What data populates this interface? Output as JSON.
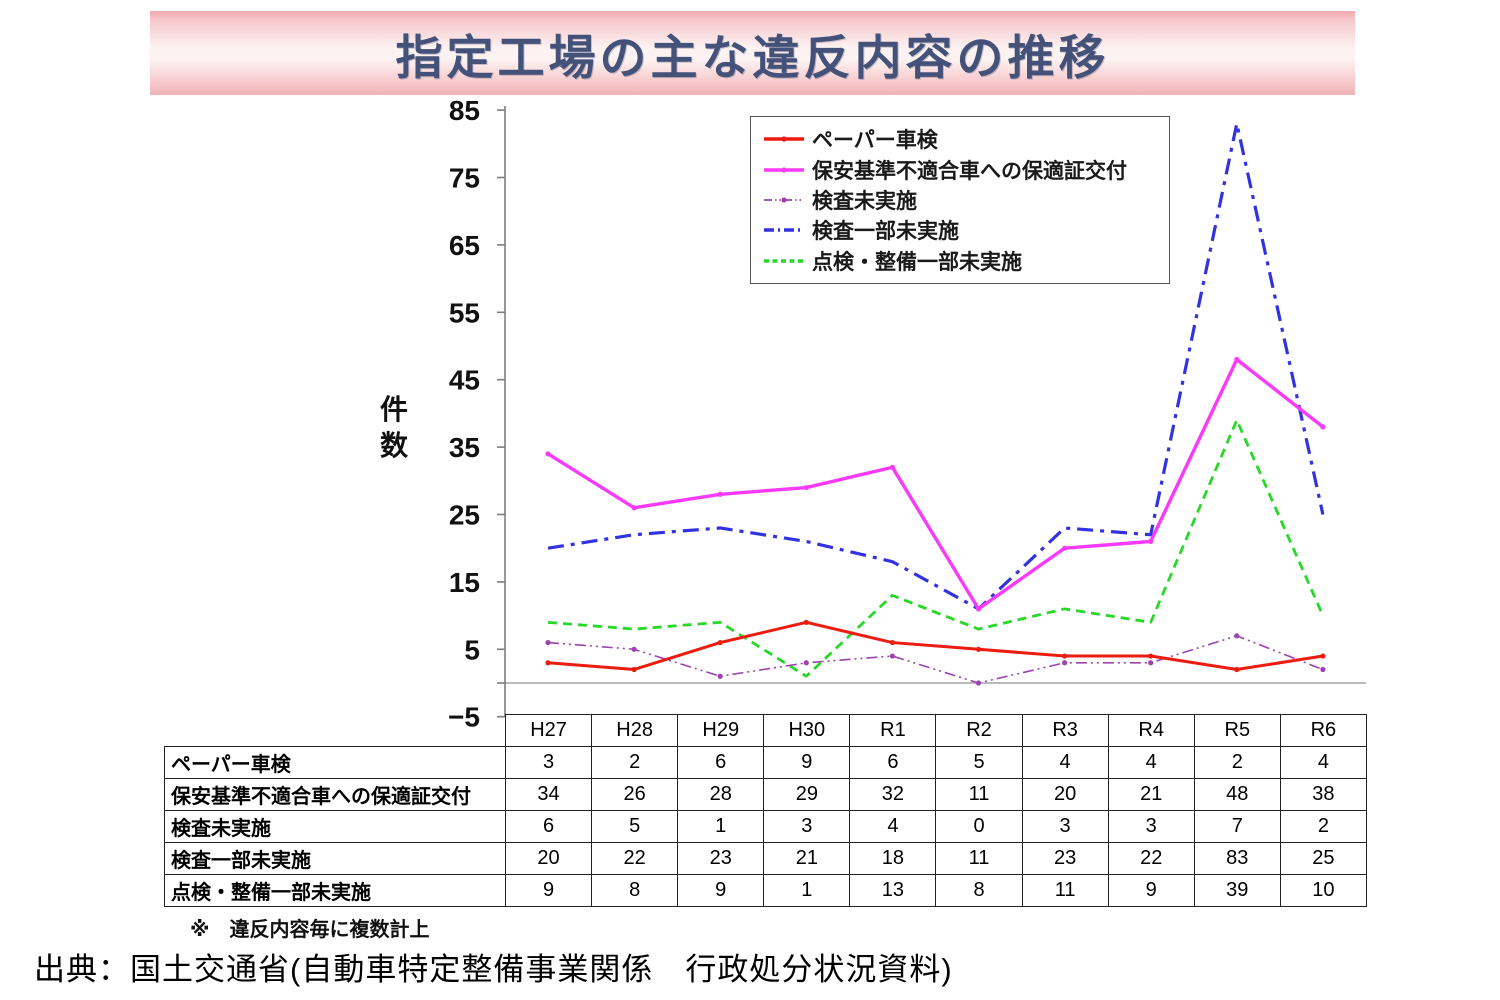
{
  "banner": {
    "title": "指定工場の主な違反内容の推移"
  },
  "chart_data": {
    "type": "line",
    "title": "指定工場の主な違反内容の推移",
    "xlabel": "",
    "ylabel": "件数",
    "ylim": [
      -5,
      85
    ],
    "yticks": [
      85,
      75,
      65,
      55,
      45,
      35,
      25,
      15,
      5,
      -5
    ],
    "grid": "zero-line-only",
    "legend_position": "top-right-inside",
    "categories": [
      "H27",
      "H28",
      "H29",
      "H30",
      "R1",
      "R2",
      "R3",
      "R4",
      "R5",
      "R6"
    ],
    "series": [
      {
        "name": "ペーパー車検",
        "color": "#ee1c10",
        "line_style": "solid",
        "marker": true,
        "values": [
          3,
          2,
          6,
          9,
          6,
          5,
          4,
          4,
          2,
          4
        ]
      },
      {
        "name": "保安基準不適合車への保適証交付",
        "color": "#fa3afa",
        "line_style": "solid",
        "marker": true,
        "values": [
          34,
          26,
          28,
          29,
          32,
          11,
          20,
          21,
          48,
          38
        ]
      },
      {
        "name": "検査未実施",
        "color": "#9b44ae",
        "line_style": "dash-dot-dot",
        "marker": true,
        "values": [
          6,
          5,
          1,
          3,
          4,
          0,
          3,
          3,
          7,
          2
        ]
      },
      {
        "name": "検査一部未実施",
        "color": "#3232e0",
        "line_style": "dash-dot",
        "marker": false,
        "values": [
          20,
          22,
          23,
          21,
          18,
          11,
          23,
          22,
          83,
          25
        ]
      },
      {
        "name": "点検・整備一部未実施",
        "color": "#28d828",
        "line_style": "dashed",
        "marker": false,
        "values": [
          9,
          8,
          9,
          1,
          13,
          8,
          11,
          9,
          39,
          10
        ]
      }
    ]
  },
  "footnote": "※　違反内容毎に複数計上",
  "source": "出典：国土交通省(自動車特定整備事業関係　行政処分状況資料)"
}
